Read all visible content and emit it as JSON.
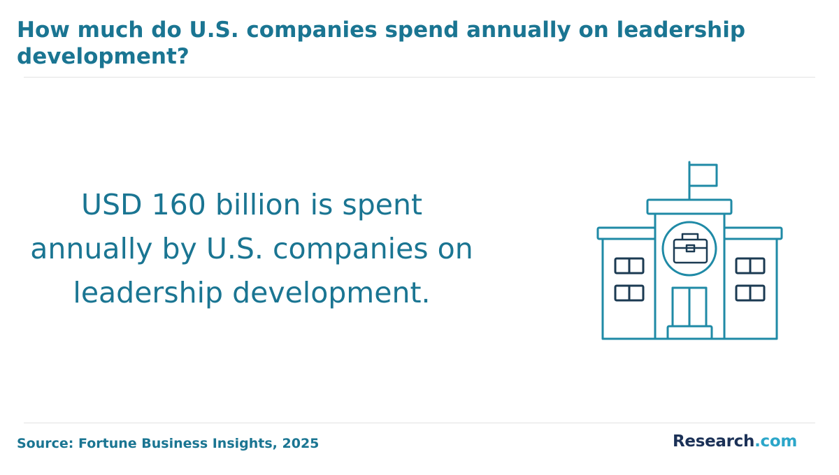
{
  "header": {
    "title": "How much do U.S. companies spend annually on leadership development?"
  },
  "main": {
    "statement": "USD 160 billion is spent annually by U.S. companies on leadership development.",
    "illustration_icon": "school-building-with-briefcase-icon"
  },
  "footer": {
    "source": "Source: Fortune Business Insights, 2025",
    "logo_main": "Research",
    "logo_tld": ".com"
  },
  "colors": {
    "accent": "#1a7592",
    "icon_teal": "#1f8aa6",
    "icon_dark": "#1b3a52",
    "logo_navy": "#1b3157",
    "logo_cyan": "#2ba6c9"
  }
}
